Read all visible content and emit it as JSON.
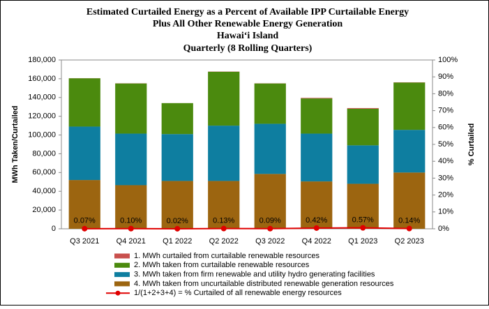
{
  "chart_data": {
    "type": "stacked-bar-line",
    "title": [
      "Estimated Curtailed  Energy as a Percent of Available IPP Curtailable  Energy",
      "Plus All Other Renewable Energy Generation",
      "Hawai‘i Island",
      "Quarterly (8 Rolling Quarters)"
    ],
    "y_label": "MWh Taken/Curtailed",
    "y2_label": "% Curtailed",
    "categories": [
      "Q3 2021",
      "Q4 2021",
      "Q1 2022",
      "Q2 2022",
      "Q3 2022",
      "Q4 2022",
      "Q1 2023",
      "Q2 2023"
    ],
    "series": [
      {
        "name": "1. MWh curtailed from curtailable renewable resources",
        "color": "#c9504d",
        "values": [
          112,
          155,
          27,
          218,
          140,
          585,
          730,
          220
        ]
      },
      {
        "name": "2. MWh taken from curtailable renewable resources",
        "color": "#4b8a0e",
        "values": [
          51500,
          53500,
          33000,
          57500,
          43000,
          37500,
          39000,
          50500
        ]
      },
      {
        "name": "3. MWh taken from firm renewable and utility hydro generating facilities",
        "color": "#0e7ea0",
        "values": [
          57000,
          55000,
          50000,
          59000,
          53500,
          51000,
          41000,
          45500
        ]
      },
      {
        "name": "4. MWh taken from uncurtailable distributed renewable generation resources",
        "color": "#9c6510",
        "values": [
          52000,
          46500,
          51000,
          51000,
          58500,
          50500,
          48000,
          60000
        ]
      },
      {
        "name": "1/(1+2+3+4) = % Curtailed of all renewable energy resources",
        "color": "#e00000",
        "axis": "y2",
        "values": [
          0.07,
          0.1,
          0.02,
          0.13,
          0.09,
          0.42,
          0.57,
          0.14
        ],
        "value_labels": [
          "0.07%",
          "0.10%",
          "0.02%",
          "0.13%",
          "0.09%",
          "0.42%",
          "0.57%",
          "0.14%"
        ]
      }
    ],
    "ylim": [
      0,
      180000
    ],
    "yticks": [
      0,
      {
        "value": 20000,
        "label": "20,000"
      },
      {
        "value": 40000,
        "label": "40,000"
      },
      {
        "value": 60000,
        "label": "60,000"
      },
      {
        "value": 80000,
        "label": "80,000"
      },
      {
        "value": 100000,
        "label": "100,000"
      },
      {
        "value": 120000,
        "label": "120,000"
      },
      {
        "value": 140000,
        "label": "140,000"
      },
      {
        "value": 160000,
        "label": "160,000"
      },
      {
        "value": 180000,
        "label": "180,000"
      }
    ],
    "y2lim": [
      0,
      100
    ],
    "y2ticks": [
      {
        "value": 0,
        "label": "0%"
      },
      {
        "value": 10,
        "label": "10%"
      },
      {
        "value": 20,
        "label": "20%"
      },
      {
        "value": 30,
        "label": "30%"
      },
      {
        "value": 40,
        "label": "40%"
      },
      {
        "value": 50,
        "label": "50%"
      },
      {
        "value": 60,
        "label": "60%"
      },
      {
        "value": 70,
        "label": "70%"
      },
      {
        "value": 80,
        "label": "80%"
      },
      {
        "value": 90,
        "label": "90%"
      },
      {
        "value": 100,
        "label": "100%"
      }
    ]
  }
}
